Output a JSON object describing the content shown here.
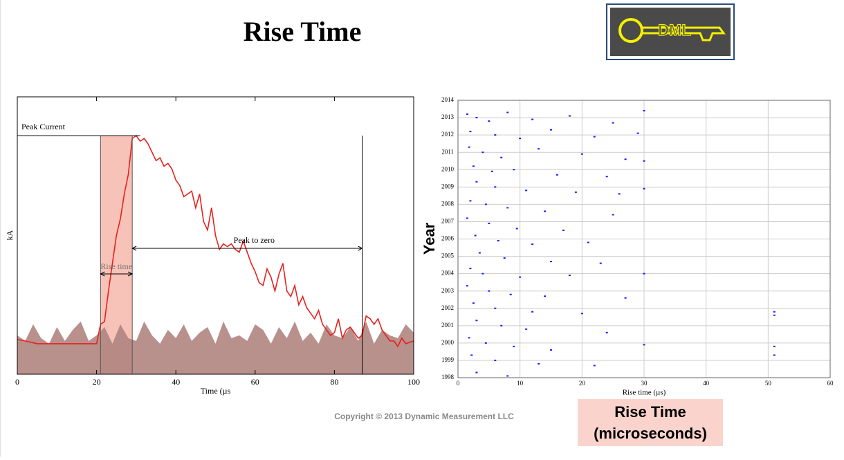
{
  "title": "Rise Time",
  "logo": "DML",
  "copyright": "Copyright © 2013 Dynamic Measurement LLC",
  "highlight": [
    "Rise Time",
    "(microseconds)"
  ],
  "chart_data": [
    {
      "type": "line",
      "xlabel": "Time (µs",
      "ylabel": "kA",
      "xlim": [
        0,
        100
      ],
      "xticks": [
        0,
        20,
        40,
        60,
        80,
        100
      ],
      "ylim": [
        0,
        100
      ],
      "peak": 86,
      "rise_start": 21,
      "rise_end": 29,
      "zero_time": 87,
      "annotations": {
        "peak": "Peak Current",
        "rise": "Rise time",
        "zero": "Peak to zero"
      },
      "series": [
        {
          "kind": "area",
          "color": "#b08480",
          "x": [
            0,
            2,
            4,
            6,
            8,
            10,
            12,
            14,
            16,
            18,
            20,
            22,
            24,
            26,
            28,
            30,
            32,
            34,
            36,
            38,
            40,
            42,
            44,
            46,
            48,
            50,
            52,
            54,
            56,
            58,
            60,
            62,
            64,
            66,
            68,
            70,
            72,
            74,
            76,
            78,
            80,
            82,
            84,
            86,
            88,
            90,
            92,
            94,
            96,
            98,
            100
          ],
          "values": [
            14,
            12,
            18,
            13,
            11,
            17,
            12,
            16,
            19,
            12,
            14,
            17,
            11,
            18,
            13,
            12,
            19,
            14,
            11,
            16,
            13,
            18,
            12,
            15,
            17,
            11,
            19,
            13,
            14,
            12,
            18,
            16,
            11,
            17,
            13,
            19,
            12,
            15,
            11,
            18,
            14,
            13,
            17,
            12,
            19,
            11,
            16,
            14,
            13,
            18,
            15
          ]
        },
        {
          "kind": "line",
          "color": "#e8201c",
          "x": [
            0,
            2,
            5,
            10,
            15,
            20,
            21,
            22,
            23,
            24,
            25,
            26,
            27,
            28,
            29,
            30,
            31,
            32,
            33,
            34,
            35,
            36,
            37,
            38,
            39,
            40,
            41,
            42,
            43,
            44,
            45,
            46,
            47,
            48,
            49,
            50,
            51,
            52,
            53,
            54,
            55,
            56,
            57,
            58,
            59,
            60,
            61,
            62,
            63,
            64,
            65,
            66,
            67,
            68,
            69,
            70,
            71,
            72,
            73,
            74,
            75,
            76,
            77,
            78,
            79,
            80,
            81,
            82,
            83,
            84,
            85,
            86,
            87,
            88,
            89,
            90,
            91,
            92,
            93,
            94,
            95,
            96,
            97,
            98,
            100
          ],
          "values": [
            12.5,
            12,
            11,
            11,
            11,
            11,
            18,
            19,
            30,
            40,
            50,
            56,
            65,
            72,
            85,
            86,
            84,
            85,
            83,
            80,
            77,
            78,
            75,
            76,
            74,
            70,
            68,
            64,
            65,
            66,
            60,
            65,
            55,
            52,
            60,
            50,
            45,
            47,
            46,
            47,
            45,
            44,
            48,
            44,
            40,
            37,
            33,
            32,
            38,
            35,
            30,
            36,
            40,
            30,
            28,
            32,
            25,
            28,
            24,
            22,
            20,
            23,
            18,
            16,
            14,
            15,
            20,
            13,
            16,
            17,
            15,
            13,
            14,
            21,
            20,
            18,
            20,
            16,
            14,
            12,
            12,
            10,
            13,
            11,
            12
          ]
        }
      ]
    },
    {
      "type": "scatter",
      "xlabel": "Rise time (µs)",
      "ylabel": "Year",
      "xlim": [
        0,
        60
      ],
      "xticks": [
        0,
        10,
        20,
        30,
        40,
        50,
        60
      ],
      "ylim": [
        1998,
        2014
      ],
      "yticks": [
        1998,
        1999,
        2000,
        2001,
        2002,
        2003,
        2004,
        2005,
        2006,
        2007,
        2008,
        2009,
        2010,
        2011,
        2012,
        2013,
        2014
      ],
      "grid": true,
      "color": "#1a1aff",
      "x": [
        1.5,
        3,
        5,
        8,
        12,
        18,
        25,
        30,
        2,
        6,
        10,
        15,
        22,
        29,
        1.8,
        4,
        7,
        13,
        20,
        27,
        30,
        2.5,
        5.5,
        9,
        16,
        24,
        3,
        6,
        11,
        19,
        26,
        30,
        2,
        4.5,
        8,
        14,
        25,
        1.5,
        5,
        9.5,
        17,
        2.8,
        6.5,
        12,
        21,
        3.5,
        7.5,
        15,
        23,
        2,
        4,
        10,
        18,
        30,
        1.5,
        5,
        8.5,
        14,
        27,
        2.5,
        6,
        12,
        20,
        3,
        7,
        11,
        24,
        1.8,
        4.5,
        9,
        15,
        30,
        2.2,
        6,
        13,
        22,
        3,
        8,
        51,
        51,
        51,
        51
      ],
      "y": [
        2013.2,
        2013.0,
        2012.8,
        2013.3,
        2012.9,
        2013.1,
        2012.7,
        2013.4,
        2012.2,
        2012.0,
        2011.8,
        2012.3,
        2011.9,
        2012.1,
        2011.3,
        2011.0,
        2010.7,
        2011.2,
        2010.9,
        2010.6,
        2010.5,
        2010.2,
        2009.9,
        2010.0,
        2009.7,
        2009.6,
        2009.3,
        2009.0,
        2008.8,
        2008.7,
        2008.6,
        2008.9,
        2008.2,
        2008.0,
        2007.8,
        2007.6,
        2007.4,
        2007.2,
        2006.9,
        2006.6,
        2006.5,
        2006.2,
        2005.9,
        2005.7,
        2005.8,
        2005.2,
        2004.9,
        2004.7,
        2004.6,
        2004.3,
        2004.0,
        2003.8,
        2003.9,
        2004.0,
        2003.3,
        2003.0,
        2002.8,
        2002.7,
        2002.6,
        2002.3,
        2002.0,
        2001.8,
        2001.7,
        2001.3,
        2001.0,
        2000.8,
        2000.6,
        2000.3,
        2000.0,
        1999.8,
        1999.6,
        1999.9,
        1999.3,
        1999.0,
        1998.8,
        1998.7,
        1998.3,
        1998.1,
        2001.8,
        1999.8,
        1999.3,
        2001.6
      ]
    }
  ]
}
